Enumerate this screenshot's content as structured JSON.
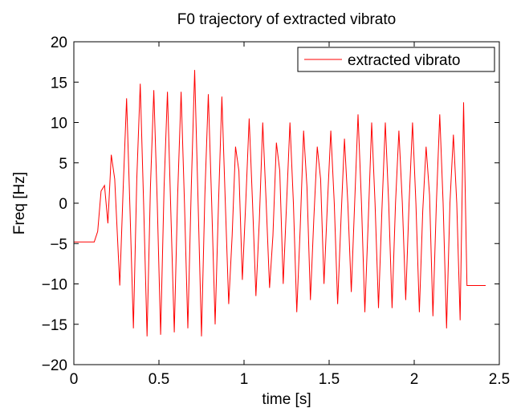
{
  "chart_data": {
    "type": "line",
    "title": "F0 trajectory of extracted vibrato",
    "xlabel": "time [s]",
    "ylabel": "Freq [Hz]",
    "xlim": [
      0,
      2.5
    ],
    "ylim": [
      -20,
      20
    ],
    "xticks": [
      0,
      0.5,
      1,
      1.5,
      2,
      2.5
    ],
    "xtick_labels": [
      "0",
      "0.5",
      "1",
      "1.5",
      "2",
      "2.5"
    ],
    "yticks": [
      -20,
      -15,
      -10,
      -5,
      0,
      5,
      10,
      15,
      20
    ],
    "ytick_labels": [
      "−20",
      "−15",
      "−10",
      "−5",
      "0",
      "5",
      "10",
      "15",
      "20"
    ],
    "grid": false,
    "legend_position": "top-right",
    "series": [
      {
        "name": "extracted vibrato",
        "color": "#ff0000",
        "x": [
          0,
          0.12,
          0.14,
          0.16,
          0.18,
          0.2,
          0.22,
          0.24,
          0.27,
          0.29,
          0.31,
          0.33,
          0.35,
          0.37,
          0.39,
          0.41,
          0.43,
          0.45,
          0.47,
          0.49,
          0.51,
          0.53,
          0.55,
          0.57,
          0.59,
          0.61,
          0.63,
          0.65,
          0.67,
          0.69,
          0.71,
          0.73,
          0.75,
          0.77,
          0.79,
          0.81,
          0.83,
          0.85,
          0.87,
          0.89,
          0.91,
          0.93,
          0.95,
          0.97,
          0.99,
          1.01,
          1.03,
          1.05,
          1.07,
          1.09,
          1.11,
          1.13,
          1.15,
          1.17,
          1.19,
          1.21,
          1.23,
          1.25,
          1.27,
          1.29,
          1.31,
          1.33,
          1.35,
          1.37,
          1.39,
          1.41,
          1.43,
          1.45,
          1.47,
          1.49,
          1.51,
          1.53,
          1.55,
          1.57,
          1.59,
          1.61,
          1.63,
          1.65,
          1.67,
          1.69,
          1.71,
          1.73,
          1.75,
          1.77,
          1.79,
          1.81,
          1.83,
          1.85,
          1.87,
          1.89,
          1.91,
          1.93,
          1.95,
          1.97,
          1.99,
          2.01,
          2.03,
          2.05,
          2.07,
          2.09,
          2.11,
          2.13,
          2.15,
          2.17,
          2.19,
          2.21,
          2.23,
          2.25,
          2.27,
          2.29,
          2.31,
          2.42
        ],
        "y": [
          -4.8,
          -4.8,
          -3.5,
          1.5,
          2.2,
          -2.5,
          6.0,
          3.0,
          -10.2,
          2.0,
          13.0,
          -1.0,
          -15.5,
          3.0,
          14.8,
          0.0,
          -16.5,
          2.0,
          14.0,
          0.0,
          -16.3,
          2.0,
          13.8,
          -1.0,
          -16.0,
          1.0,
          13.8,
          0.0,
          -15.5,
          2.0,
          16.5,
          0.0,
          -16.5,
          1.0,
          13.5,
          0.0,
          -15.0,
          0.0,
          13.2,
          0.0,
          -12.5,
          -4.0,
          7.0,
          4.0,
          -9.5,
          0.0,
          10.5,
          0.0,
          -11.5,
          -2.0,
          10.0,
          0.0,
          -10.5,
          -4.0,
          7.5,
          4.0,
          -10.0,
          0.0,
          10.0,
          0.0,
          -13.5,
          -3.0,
          9.0,
          2.0,
          -12.0,
          -2.0,
          7.0,
          3.0,
          -10.0,
          0.0,
          9.0,
          0.0,
          -12.5,
          -2.0,
          8.0,
          0.0,
          -11.0,
          0.0,
          11.0,
          0.0,
          -13.5,
          -2.0,
          10.0,
          0.0,
          -13.0,
          -1.0,
          10.0,
          0.0,
          -13.0,
          0.0,
          9.0,
          0.0,
          -12.0,
          0.0,
          10.0,
          0.0,
          -13.5,
          -1.0,
          7.0,
          1.0,
          -14.0,
          0.0,
          11.0,
          0.0,
          -15.5,
          0.0,
          8.5,
          0.0,
          -14.5,
          12.5,
          -10.2,
          -10.2
        ]
      }
    ]
  }
}
